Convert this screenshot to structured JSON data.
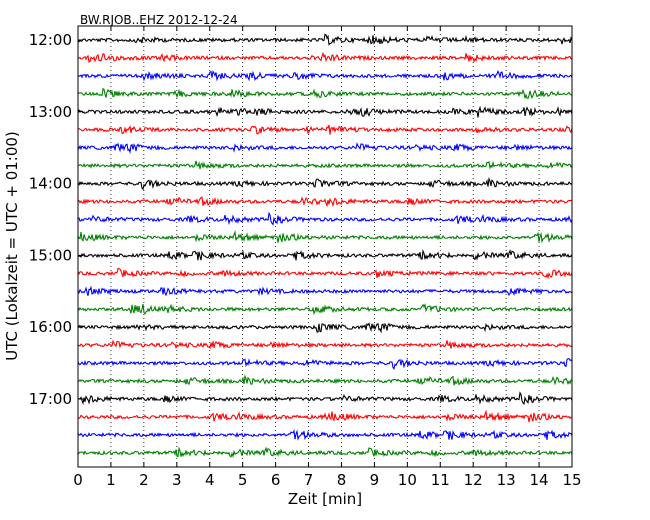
{
  "chart_data": {
    "type": "line",
    "title": "BW.RJOB..EHZ 2012-12-24",
    "xlabel": "Zeit  [min]",
    "ylabel": "UTC (Lokalzeit = UTC + 01:00)",
    "xlim": [
      0,
      15
    ],
    "x_ticks": [
      0,
      1,
      2,
      3,
      4,
      5,
      6,
      7,
      8,
      9,
      10,
      11,
      12,
      13,
      14,
      15
    ],
    "x_tick_labels": [
      "0",
      "1",
      "2",
      "3",
      "4",
      "5",
      "6",
      "7",
      "8",
      "9",
      "10",
      "11",
      "12",
      "13",
      "14",
      "15"
    ],
    "y_tick_labels": [
      "12:00",
      "13:00",
      "14:00",
      "15:00",
      "16:00",
      "17:00"
    ],
    "y_tick_rows": [
      0,
      4,
      8,
      12,
      16,
      20
    ],
    "row_interval_minutes": 15,
    "start_time": "12:00",
    "trace_colors": [
      "#000000",
      "#ff0000",
      "#0000ff",
      "#008000"
    ],
    "trace_count": 24,
    "grid": "vertical dotted at each minute"
  }
}
